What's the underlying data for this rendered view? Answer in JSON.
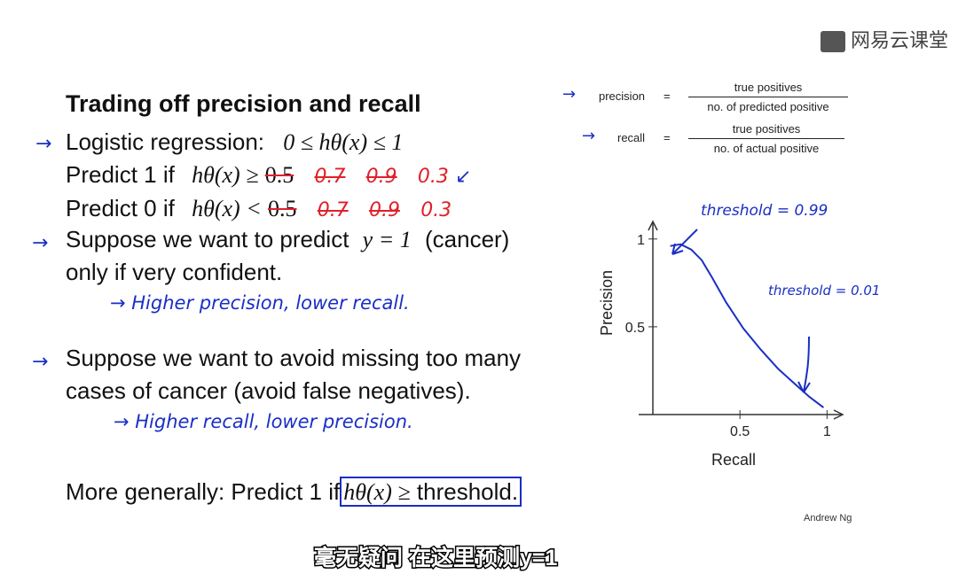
{
  "watermark": {
    "text": "网易云课堂"
  },
  "slide": {
    "title": "Trading off precision and recall",
    "logistic": {
      "label": "Logistic regression:",
      "math": "0 ≤ hθ(x) ≤ 1"
    },
    "predict1": {
      "label": "Predict 1 if",
      "math": "hθ(x) ≥",
      "v_orig": "0.5",
      "v1": "0.7",
      "v2": "0.9",
      "v3": "0.3"
    },
    "predict0": {
      "label": "Predict 0 if",
      "math": "hθ(x) <",
      "v_orig": "0.5",
      "v1": "0.7",
      "v2": "0.9",
      "v3": "0.3"
    },
    "suppose1": {
      "line1_a": "Suppose we want to predict",
      "line1_math": "y = 1",
      "line1_b": "(cancer)",
      "line2": "only if very confident."
    },
    "note1": "→ Higher precision, lower recall.",
    "suppose2": {
      "line1": "Suppose we want to avoid missing too many",
      "line2": "cases of cancer (avoid false negatives)."
    },
    "note2": "→ Higher recall, lower precision.",
    "general": {
      "label": "More generally: Predict 1 if",
      "math": "hθ(x) ≥",
      "word": "threshold."
    },
    "author": "Andrew Ng",
    "subtitle": "毫无疑问 在这里预测y=1"
  },
  "formulas": {
    "precision": {
      "name": "precision",
      "eq": "=",
      "num": "true positives",
      "den": "no. of predicted positive"
    },
    "recall": {
      "name": "recall",
      "eq": "=",
      "num": "true positives",
      "den": "no. of actual positive"
    }
  },
  "chart_data": {
    "type": "line",
    "xlabel": "Recall",
    "ylabel": "Precision",
    "xticks": [
      "0.5",
      "1"
    ],
    "yticks": [
      "0.5",
      "1"
    ],
    "xlim": [
      0,
      1.1
    ],
    "ylim": [
      0,
      1.1
    ],
    "series": [
      {
        "x": [
          0.1,
          0.16,
          0.22,
          0.28,
          0.34,
          0.42,
          0.52,
          0.62,
          0.72,
          0.82,
          0.9,
          0.98
        ],
        "y": [
          0.96,
          0.97,
          0.94,
          0.88,
          0.78,
          0.64,
          0.49,
          0.37,
          0.26,
          0.17,
          0.1,
          0.04
        ]
      }
    ],
    "annotations": [
      {
        "text": "threshold = 0.99"
      },
      {
        "text": "threshold = 0.01"
      }
    ],
    "color": "#1a2fc4"
  }
}
